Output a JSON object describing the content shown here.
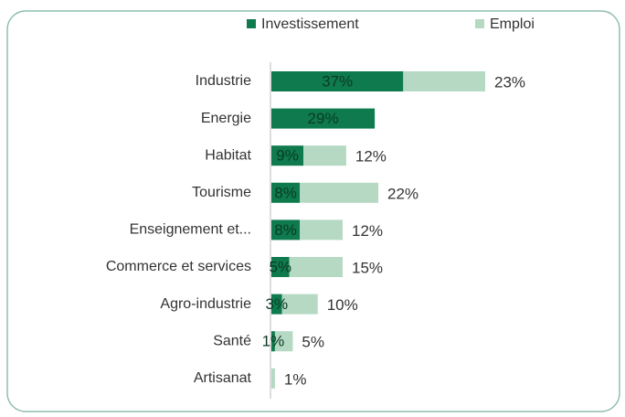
{
  "chart_data": {
    "type": "bar",
    "orientation": "horizontal",
    "stacked": true,
    "categories": [
      "Industrie",
      "Energie",
      "Habitat",
      "Tourisme",
      "Enseignement et...",
      "Commerce et services",
      "Agro-industrie",
      "Santé",
      "Artisanat"
    ],
    "series": [
      {
        "name": "Investissement",
        "color": "#0e7a4e",
        "values": [
          37,
          29,
          9,
          8,
          8,
          5,
          3,
          1,
          null
        ],
        "value_labels": [
          "37%",
          "29%",
          "9%",
          "8%",
          "8%",
          "5%",
          "3%",
          "1%",
          null
        ]
      },
      {
        "name": "Emploi",
        "color": "#b5d9c3",
        "values": [
          23,
          null,
          12,
          22,
          12,
          15,
          10,
          5,
          1
        ],
        "value_labels": [
          "23%",
          null,
          "12%",
          "22%",
          "12%",
          "15%",
          "10%",
          "5%",
          "1%"
        ]
      }
    ],
    "legend": "top"
  }
}
